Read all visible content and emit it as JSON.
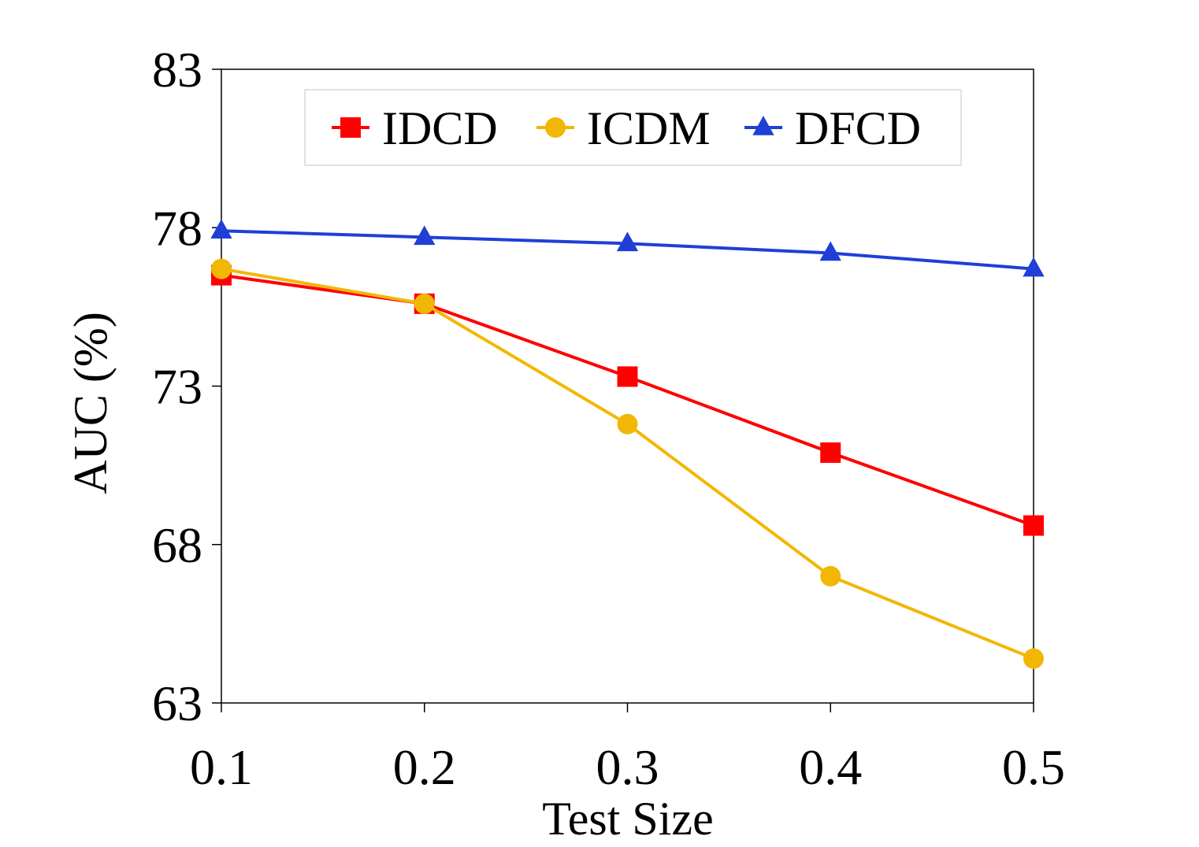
{
  "chart_data": {
    "type": "line",
    "title": "",
    "xlabel": "Test Size",
    "ylabel": "AUC (%)",
    "x": [
      0.1,
      0.2,
      0.3,
      0.4,
      0.5
    ],
    "x_tick_labels": [
      "0.1",
      "0.2",
      "0.3",
      "0.4",
      "0.5"
    ],
    "ylim": [
      63,
      83
    ],
    "y_ticks": [
      63,
      68,
      73,
      78,
      83
    ],
    "y_tick_labels": [
      "63",
      "68",
      "73",
      "78",
      "83"
    ],
    "grid": false,
    "legend_position": "top-center",
    "series": [
      {
        "name": "IDCD",
        "marker": "square",
        "color": "#ff0000",
        "values": [
          76.5,
          75.6,
          73.3,
          70.9,
          68.6
        ]
      },
      {
        "name": "ICDM",
        "marker": "circle",
        "color": "#f2b705",
        "values": [
          76.7,
          75.6,
          71.8,
          67.0,
          64.4
        ]
      },
      {
        "name": "DFCD",
        "marker": "triangle",
        "color": "#1f3fd6",
        "values": [
          77.9,
          77.7,
          77.5,
          77.2,
          76.7
        ]
      }
    ]
  }
}
